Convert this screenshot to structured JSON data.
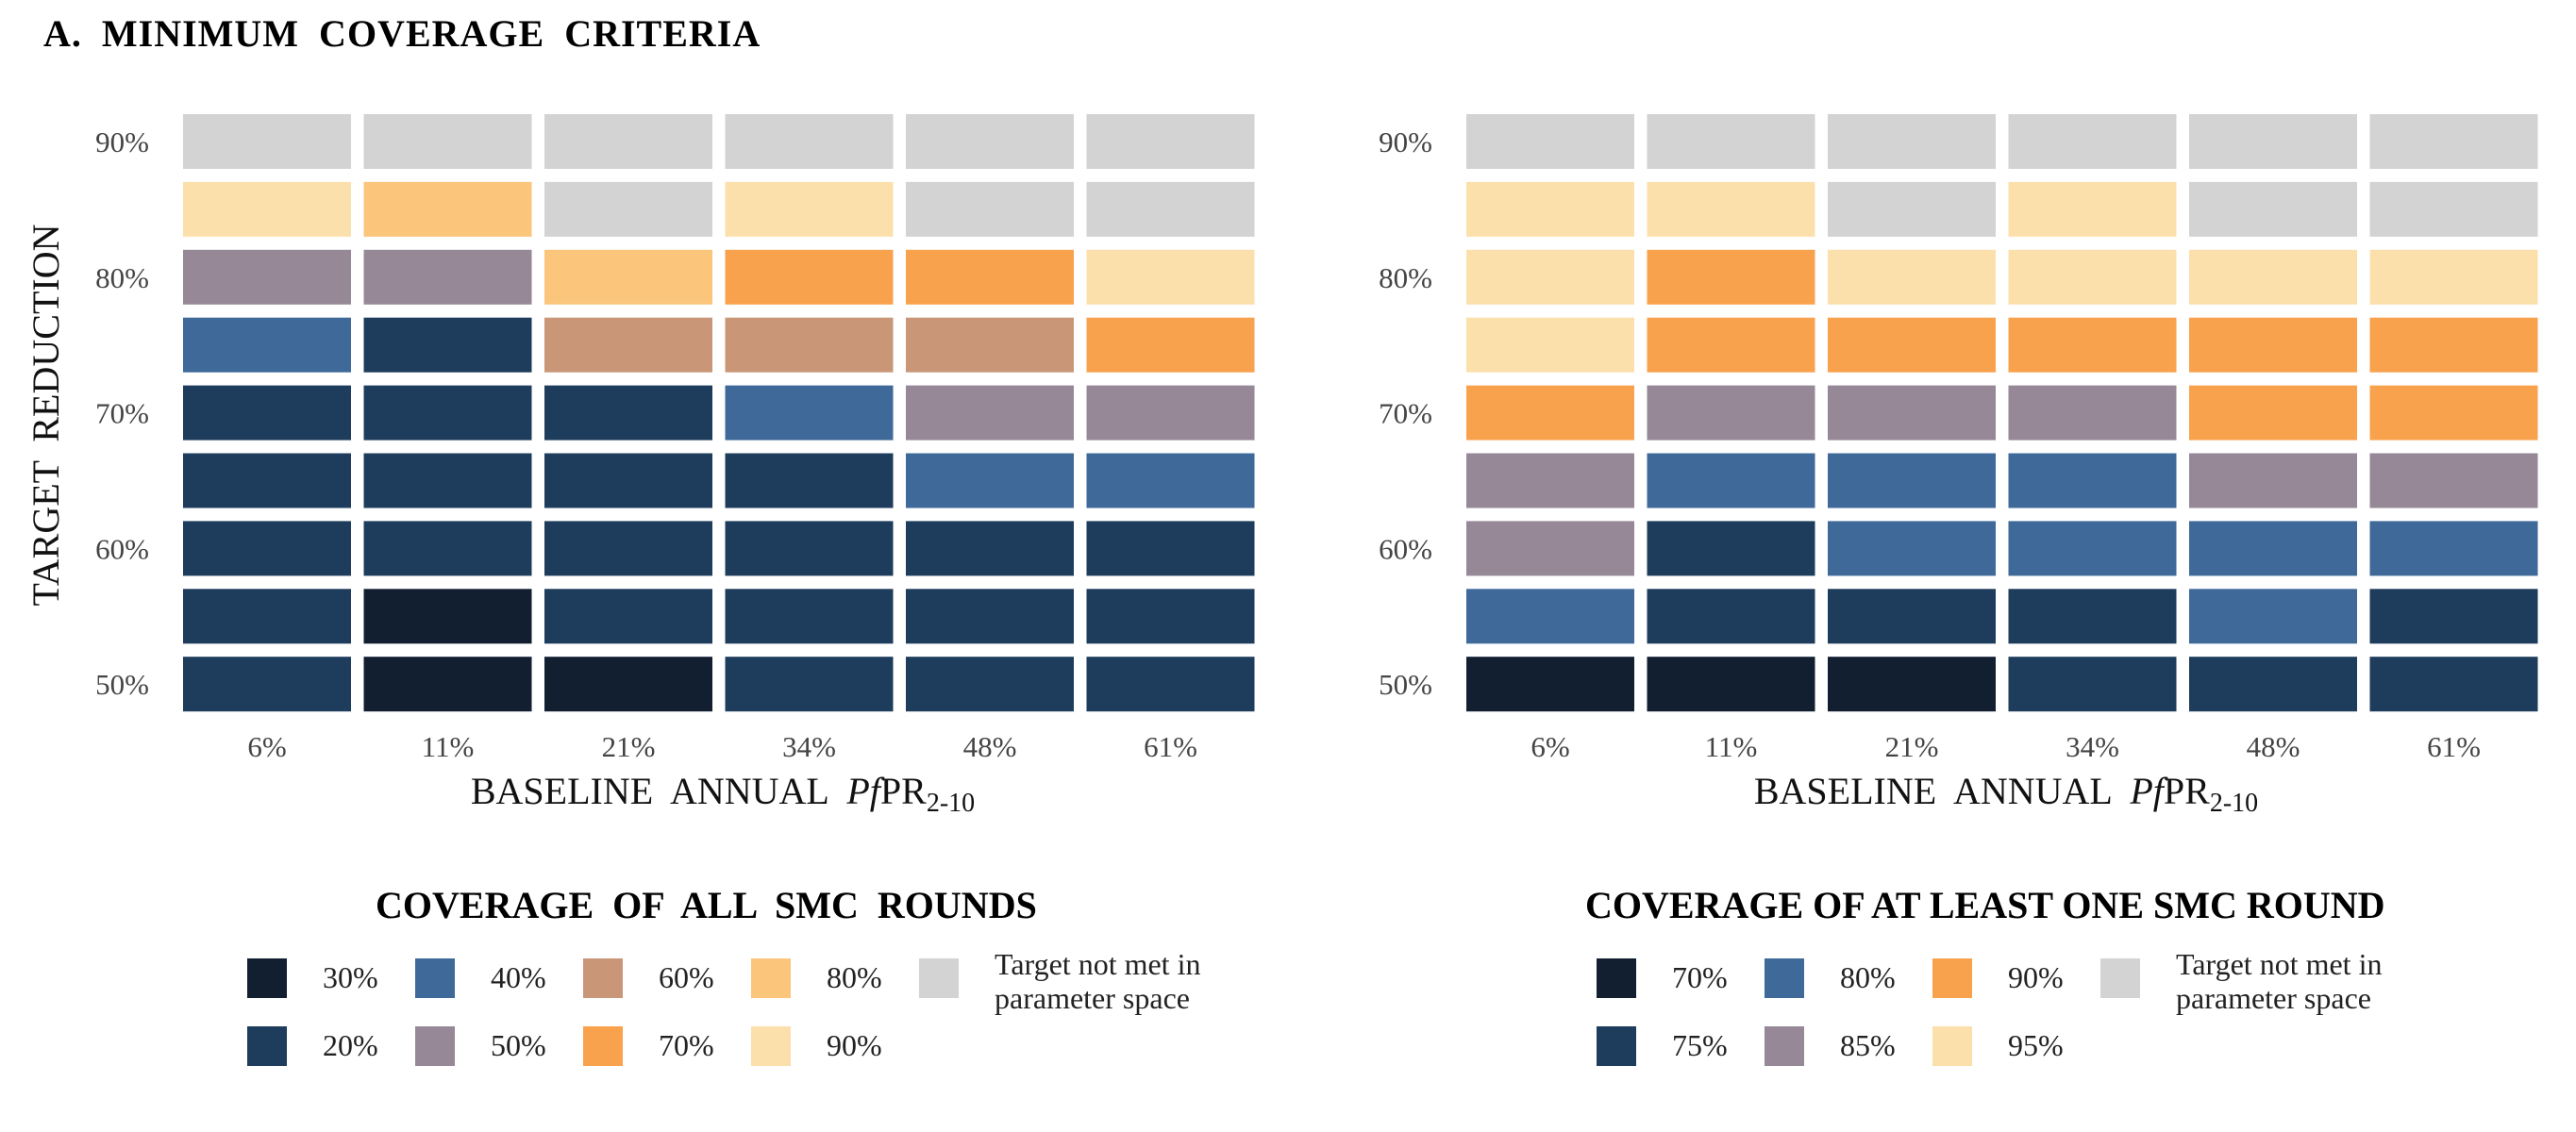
{
  "figure_title": "A.  MINIMUM  COVERAGE  CRITERIA",
  "y_axis_label": "TARGET  REDUCTION",
  "x_axis_label_prefix": "BASELINE  ANNUAL  ",
  "x_axis_label_italic": "Pf",
  "x_axis_label_main": "PR",
  "x_axis_label_sub": "2-10",
  "chart_data": [
    {
      "type": "heatmap",
      "x": [
        "6%",
        "11%",
        "21%",
        "34%",
        "48%",
        "61%"
      ],
      "y_ticks": [
        "50%",
        "60%",
        "70%",
        "80%",
        "90%"
      ],
      "y_levels": [
        "90%",
        "85%",
        "80%",
        "75%",
        "70%",
        "65%",
        "60%",
        "55%",
        "50%"
      ],
      "xlabel": "BASELINE  ANNUAL  PfPR2-10",
      "ylabel": "TARGET  REDUCTION",
      "values": [
        [
          "NA",
          "NA",
          "NA",
          "NA",
          "NA",
          "NA"
        ],
        [
          "90%",
          "80%",
          "NA",
          "90%",
          "NA",
          "NA"
        ],
        [
          "50%",
          "50%",
          "80%",
          "70%",
          "70%",
          "90%"
        ],
        [
          "40%",
          "20%",
          "60%",
          "60%",
          "60%",
          "70%"
        ],
        [
          "20%",
          "20%",
          "20%",
          "40%",
          "50%",
          "50%"
        ],
        [
          "20%",
          "20%",
          "20%",
          "20%",
          "40%",
          "40%"
        ],
        [
          "20%",
          "20%",
          "20%",
          "20%",
          "20%",
          "20%"
        ],
        [
          "20%",
          "30%",
          "20%",
          "20%",
          "20%",
          "20%"
        ],
        [
          "20%",
          "30%",
          "30%",
          "20%",
          "20%",
          "20%"
        ]
      ],
      "legend": {
        "title": "COVERAGE  OF  ALL  SMC  ROUNDS",
        "items": [
          {
            "key": "30%",
            "label": "30%",
            "color": "#121f31"
          },
          {
            "key": "40%",
            "label": "40%",
            "color": "#3e6999"
          },
          {
            "key": "60%",
            "label": "60%",
            "color": "#c99677"
          },
          {
            "key": "80%",
            "label": "80%",
            "color": "#fbc57b"
          },
          {
            "key": "NA",
            "label": "Target not met in parameter space",
            "color": "#d3d3d3"
          },
          {
            "key": "20%",
            "label": "20%",
            "color": "#1e3c5c"
          },
          {
            "key": "50%",
            "label": "50%",
            "color": "#968896"
          },
          {
            "key": "70%",
            "label": "70%",
            "color": "#f9a24d"
          },
          {
            "key": "90%",
            "label": "90%",
            "color": "#fce0ac"
          }
        ]
      }
    },
    {
      "type": "heatmap",
      "x": [
        "6%",
        "11%",
        "21%",
        "34%",
        "48%",
        "61%"
      ],
      "y_ticks": [
        "50%",
        "60%",
        "70%",
        "80%",
        "90%"
      ],
      "y_levels": [
        "90%",
        "85%",
        "80%",
        "75%",
        "70%",
        "65%",
        "60%",
        "55%",
        "50%"
      ],
      "xlabel": "BASELINE  ANNUAL  PfPR2-10",
      "ylabel": "",
      "values": [
        [
          "NA",
          "NA",
          "NA",
          "NA",
          "NA",
          "NA"
        ],
        [
          "95%",
          "95%",
          "NA",
          "95%",
          "NA",
          "NA"
        ],
        [
          "95%",
          "90%",
          "95%",
          "95%",
          "95%",
          "95%"
        ],
        [
          "95%",
          "90%",
          "90%",
          "90%",
          "90%",
          "90%"
        ],
        [
          "90%",
          "85%",
          "85%",
          "85%",
          "90%",
          "90%"
        ],
        [
          "85%",
          "80%",
          "80%",
          "80%",
          "85%",
          "85%"
        ],
        [
          "85%",
          "75%",
          "80%",
          "80%",
          "80%",
          "80%"
        ],
        [
          "80%",
          "75%",
          "75%",
          "75%",
          "80%",
          "75%"
        ],
        [
          "70%",
          "70%",
          "70%",
          "75%",
          "75%",
          "75%"
        ]
      ],
      "legend": {
        "title": "COVERAGE OF AT LEAST ONE SMC ROUND",
        "items": [
          {
            "key": "70%",
            "label": "70%",
            "color": "#121f31"
          },
          {
            "key": "80%",
            "label": "80%",
            "color": "#3e6999"
          },
          {
            "key": "90%",
            "label": "90%",
            "color": "#f9a24d"
          },
          {
            "key": "NA",
            "label": "Target not met in parameter space",
            "color": "#d3d3d3"
          },
          {
            "key": "75%",
            "label": "75%",
            "color": "#1e3c5c"
          },
          {
            "key": "85%",
            "label": "85%",
            "color": "#968896"
          },
          {
            "key": "95%",
            "label": "95%",
            "color": "#fce0ac"
          }
        ]
      }
    }
  ]
}
